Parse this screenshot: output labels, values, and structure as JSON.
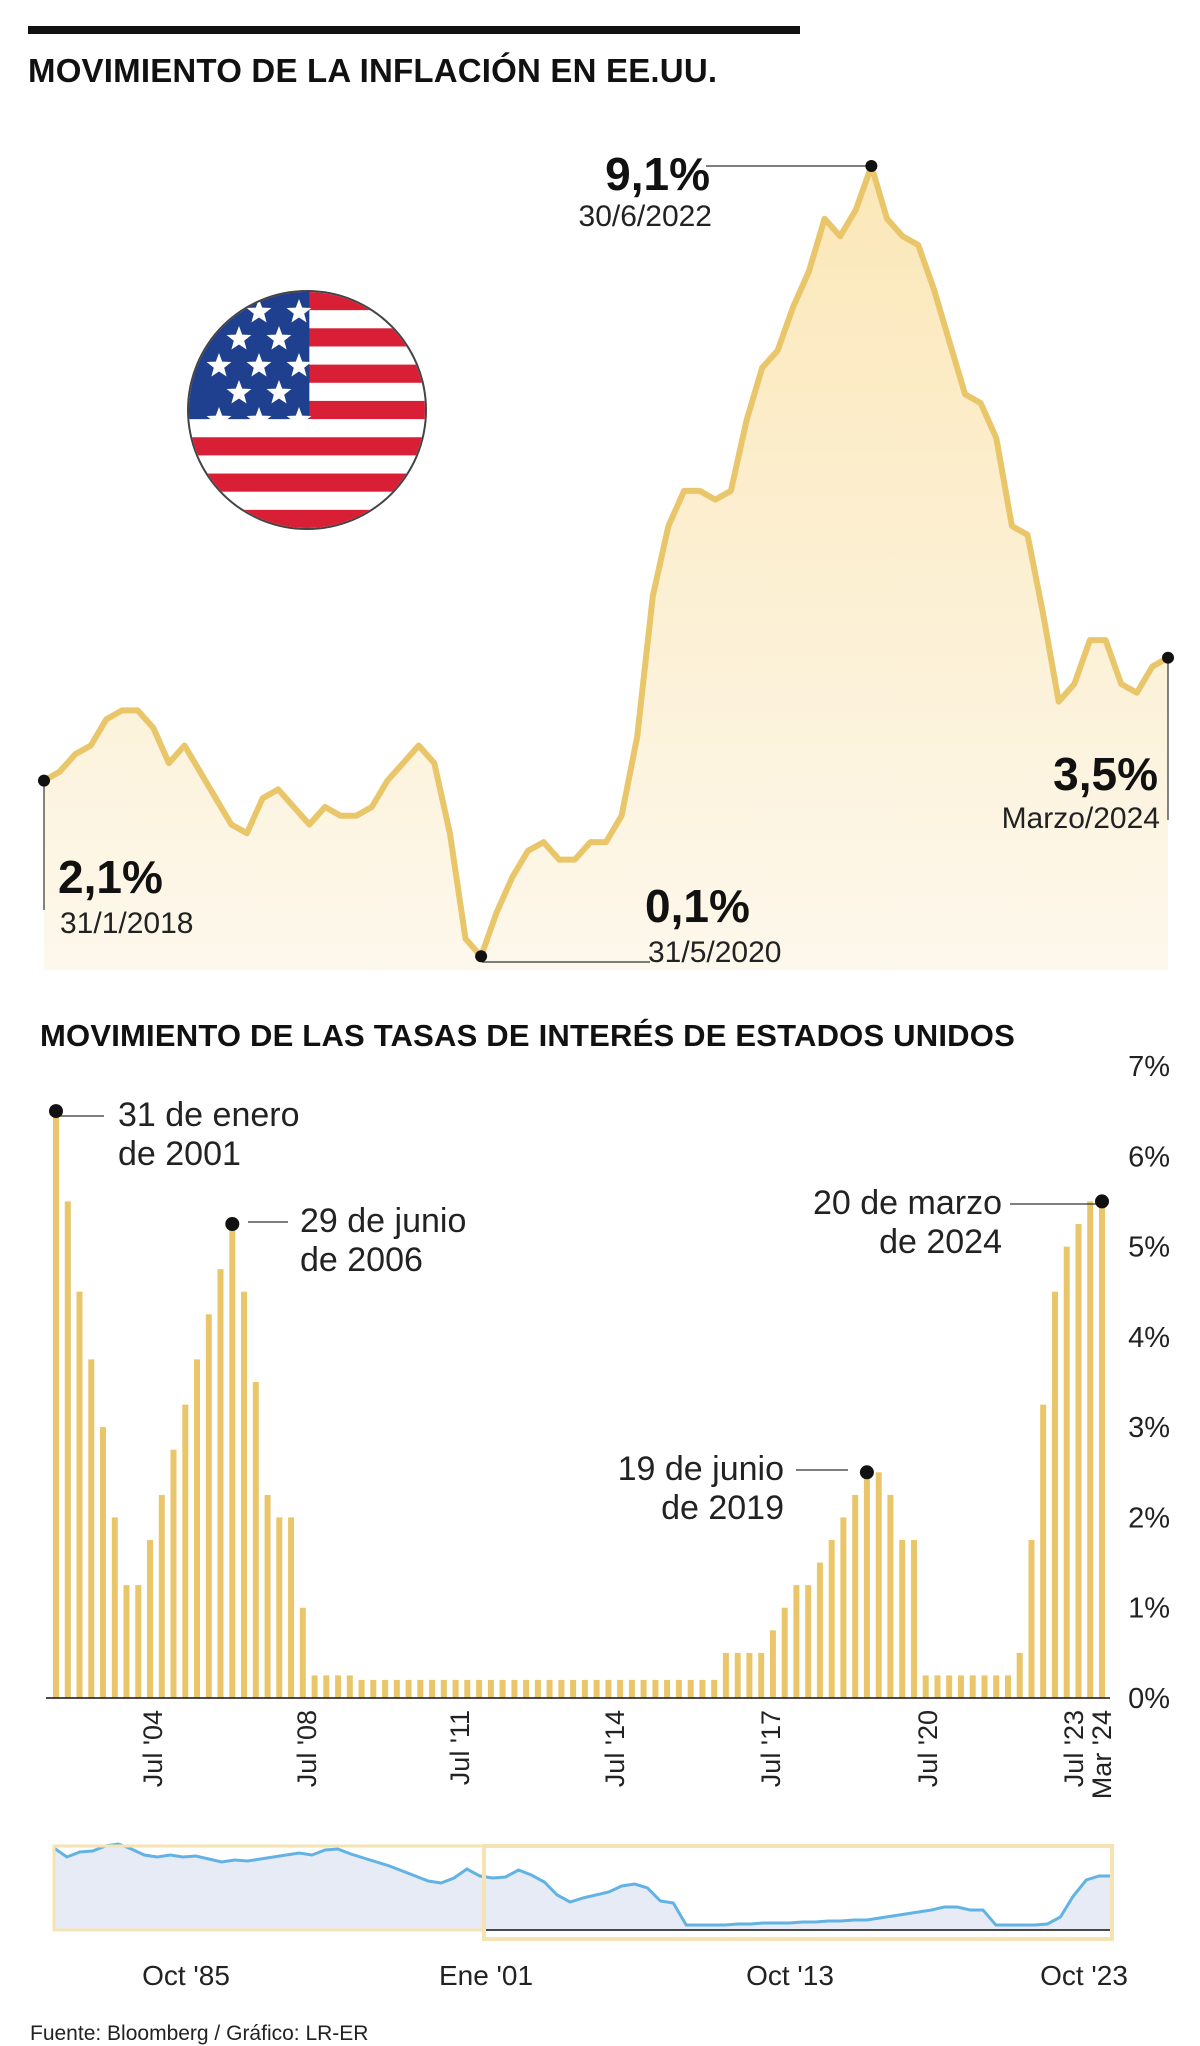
{
  "header": {
    "title": "MOVIMIENTO DE LA INFLACIÓN EN EE.UU."
  },
  "footer": {
    "source": "Fuente: Bloomberg / Gráfico: LR-ER"
  },
  "colors": {
    "gold": "#e9c66a",
    "gold_fill_top": "#fbe7b8",
    "gold_fill_bottom": "#fdf8ec",
    "blue_line": "#62b3e3",
    "overview_fill": "#e6ebf6",
    "overview_window": "#f5e3b4",
    "flag_red": "#d81f35",
    "flag_blue": "#1f3f8f"
  },
  "icons": {
    "flag": "us-flag-icon"
  },
  "chart_data": [
    {
      "type": "area",
      "title": "MOVIMIENTO DE LA INFLACIÓN EN EE.UU.",
      "xlabel": "",
      "ylabel": "",
      "unit": "%",
      "x_start": "31/1/2018",
      "x_end": "Marzo/2024",
      "frequency": "monthly",
      "ylim": [
        0,
        9.1
      ],
      "grid": false,
      "values": [
        2.1,
        2.2,
        2.4,
        2.5,
        2.8,
        2.9,
        2.9,
        2.7,
        2.3,
        2.5,
        2.2,
        1.9,
        1.6,
        1.5,
        1.9,
        2.0,
        1.8,
        1.6,
        1.8,
        1.7,
        1.7,
        1.8,
        2.1,
        2.3,
        2.5,
        2.3,
        1.5,
        0.3,
        0.1,
        0.6,
        1.0,
        1.3,
        1.4,
        1.2,
        1.2,
        1.4,
        1.4,
        1.7,
        2.6,
        4.2,
        5.0,
        5.4,
        5.4,
        5.3,
        5.4,
        6.2,
        6.8,
        7.0,
        7.5,
        7.9,
        8.5,
        8.3,
        8.6,
        9.1,
        8.5,
        8.3,
        8.2,
        7.7,
        7.1,
        6.5,
        6.4,
        6.0,
        5.0,
        4.9,
        4.0,
        3.0,
        3.2,
        3.7,
        3.7,
        3.2,
        3.1,
        3.4,
        3.5
      ],
      "annotations": [
        {
          "value": "2,1%",
          "label": "31/1/2018"
        },
        {
          "value": "0,1%",
          "label": "31/5/2020"
        },
        {
          "value": "9,1%",
          "label": "30/6/2022"
        },
        {
          "value": "3,5%",
          "label": "Marzo/2024"
        }
      ]
    },
    {
      "type": "bar",
      "title": "MOVIMIENTO DE LAS TASAS DE INTERÉS DE ESTADOS UNIDOS",
      "xlabel": "",
      "ylabel": "",
      "unit": "%",
      "ylim": [
        0,
        7
      ],
      "y_ticks": [
        "0%",
        "1%",
        "2%",
        "3%",
        "4%",
        "5%",
        "6%",
        "7%"
      ],
      "x_ticks": [
        "Jul '04",
        "Jul '08",
        "Jul '11",
        "Jul '14",
        "Jul '17",
        "Jul '20",
        "Jul '23",
        "Mar '24"
      ],
      "values": [
        6.5,
        5.5,
        4.5,
        3.75,
        3.0,
        2.0,
        1.25,
        1.25,
        1.75,
        2.25,
        2.75,
        3.25,
        3.75,
        4.25,
        4.75,
        5.25,
        4.5,
        3.5,
        2.25,
        2.0,
        2.0,
        1.0,
        0.25,
        0.25,
        0.25,
        0.25,
        0.2,
        0.2,
        0.2,
        0.2,
        0.2,
        0.2,
        0.2,
        0.2,
        0.2,
        0.2,
        0.2,
        0.2,
        0.2,
        0.2,
        0.2,
        0.2,
        0.2,
        0.2,
        0.2,
        0.2,
        0.2,
        0.2,
        0.2,
        0.2,
        0.2,
        0.2,
        0.2,
        0.2,
        0.2,
        0.2,
        0.2,
        0.5,
        0.5,
        0.5,
        0.5,
        0.75,
        1.0,
        1.25,
        1.25,
        1.5,
        1.75,
        2.0,
        2.25,
        2.5,
        2.5,
        2.25,
        1.75,
        1.75,
        0.25,
        0.25,
        0.25,
        0.25,
        0.25,
        0.25,
        0.25,
        0.25,
        0.5,
        1.75,
        3.25,
        4.5,
        5.0,
        5.25,
        5.5,
        5.5
      ],
      "annotations": [
        {
          "value": 6.5,
          "label": "31 de enero\nde 2001"
        },
        {
          "value": 5.25,
          "label": "29 de junio\nde 2006"
        },
        {
          "value": 2.5,
          "label": "19 de junio\nde 2019"
        },
        {
          "value": 5.5,
          "label": "20 de marzo\nde 2024"
        }
      ]
    },
    {
      "type": "area",
      "title": "",
      "xlabel": "",
      "ylabel": "",
      "unit": "%",
      "x_ticks": [
        "Oct '85",
        "Ene '01",
        "Oct '13",
        "Oct '23"
      ],
      "selected_range": [
        "Ene '01",
        "Oct '23"
      ],
      "ylim": [
        0,
        9
      ],
      "values": [
        8.2,
        7.3,
        7.8,
        7.9,
        8.4,
        8.6,
        8.1,
        7.5,
        7.3,
        7.5,
        7.3,
        7.4,
        7.1,
        6.8,
        7.0,
        6.9,
        7.1,
        7.3,
        7.5,
        7.7,
        7.5,
        8.0,
        8.1,
        7.6,
        7.2,
        6.8,
        6.4,
        5.9,
        5.4,
        4.9,
        4.7,
        5.2,
        6.1,
        5.4,
        5.2,
        5.3,
        6.0,
        5.5,
        4.8,
        3.5,
        2.8,
        3.2,
        3.5,
        3.8,
        4.4,
        4.6,
        4.2,
        2.9,
        2.7,
        0.5,
        0.5,
        0.5,
        0.5,
        0.6,
        0.6,
        0.7,
        0.7,
        0.7,
        0.8,
        0.8,
        0.9,
        0.9,
        1.0,
        1.0,
        1.2,
        1.4,
        1.6,
        1.8,
        2.0,
        2.3,
        2.3,
        2.0,
        2.0,
        0.5,
        0.5,
        0.5,
        0.5,
        0.6,
        1.3,
        3.4,
        5.0,
        5.4,
        5.4
      ]
    }
  ]
}
